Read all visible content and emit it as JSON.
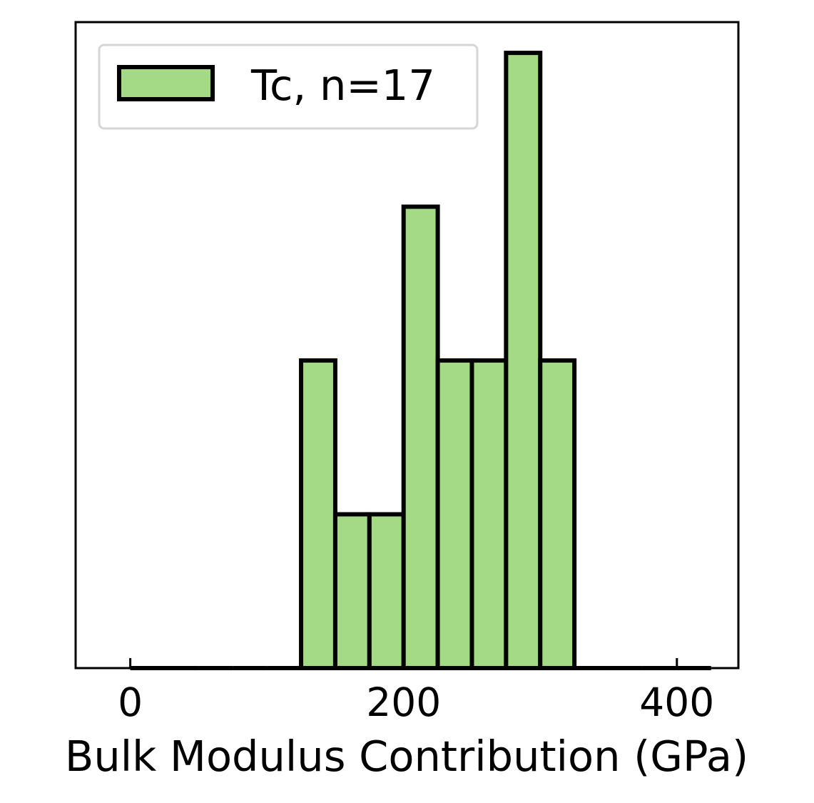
{
  "chart_data": {
    "type": "bar",
    "histogram": true,
    "xlabel": "Bulk Modulus Contribution (GPa)",
    "ylabel": "",
    "xlim": [
      -40,
      445
    ],
    "ylim": [
      0,
      4.2
    ],
    "xticks": [
      0,
      200,
      400
    ],
    "xtick_labels": [
      "0",
      "200",
      "400"
    ],
    "yticks_shown": false,
    "grid": false,
    "legend_placement": "top-left",
    "series": [
      {
        "name": "Tc, n=17",
        "bin_edges": [
          0,
          25,
          50,
          75,
          100,
          125,
          150,
          175,
          200,
          225,
          250,
          275,
          300,
          325,
          350,
          375,
          400,
          425
        ],
        "counts": [
          0,
          0,
          0,
          0,
          0,
          2,
          1,
          1,
          3,
          2,
          2,
          4,
          2,
          0,
          0,
          0,
          0
        ]
      }
    ],
    "colors": {
      "bar_fill": "#a4da85",
      "bar_edge": "#000000"
    }
  }
}
